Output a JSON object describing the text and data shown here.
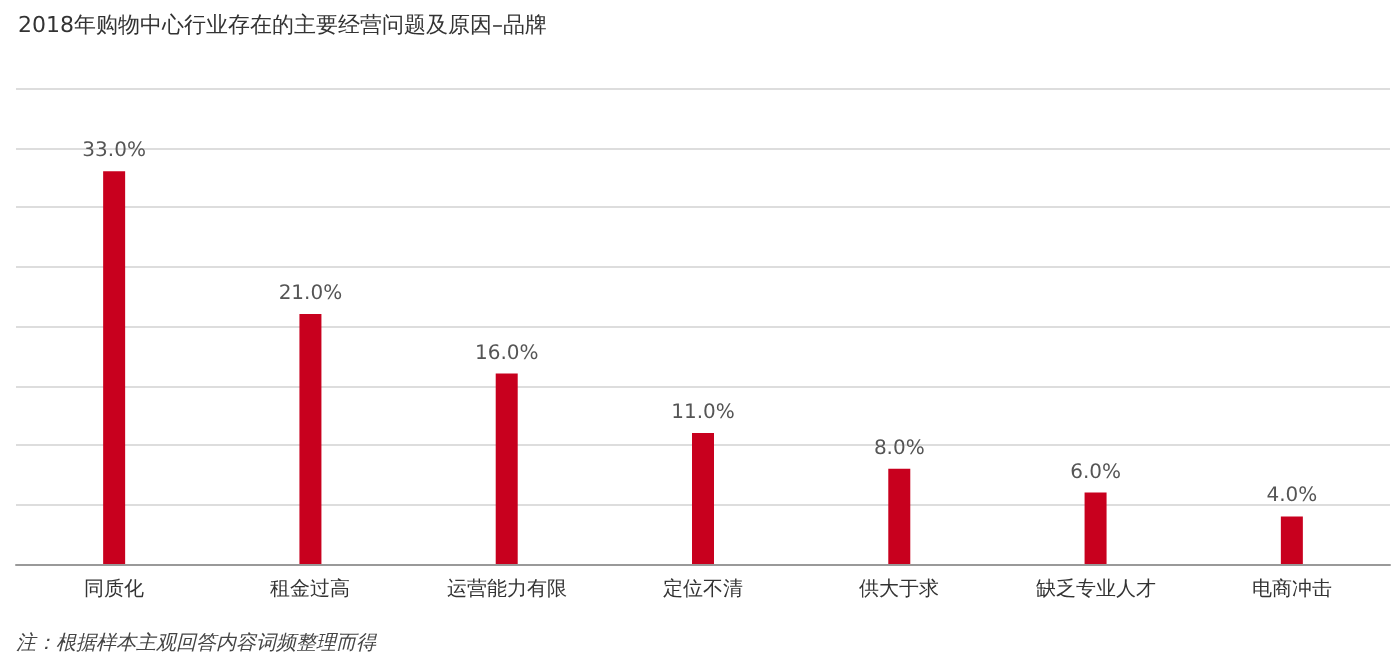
{
  "chart_data": {
    "type": "bar",
    "title": "2018年购物中心行业存在的主要经营问题及原因–品牌",
    "categories": [
      "同质化",
      "租金过高",
      "运营能力有限",
      "定位不清",
      "供大于求",
      "缺乏专业人才",
      "电商冲击"
    ],
    "values": [
      33,
      21,
      16,
      11,
      8,
      6,
      4
    ],
    "value_labels": [
      "33.0%",
      "21.0%",
      "16.0%",
      "11.0%",
      "8.0%",
      "6.0%",
      "4.0%"
    ],
    "color": "#c8001e",
    "ylim": [
      0,
      40
    ],
    "yticks": [
      {
        "value": 0,
        "label": null
      },
      {
        "value": 5,
        "label": null
      },
      {
        "value": 10,
        "label": null
      },
      {
        "value": 15,
        "label": null
      },
      {
        "value": 20,
        "label": null
      },
      {
        "value": 25,
        "label": null
      },
      {
        "value": 30,
        "label": null
      },
      {
        "value": 35,
        "label": null
      },
      {
        "value": 40,
        "label": null
      }
    ],
    "tick_labels": "x",
    "grid": "y",
    "annotations": [
      "注：根据样本主观回答内容词频整理而得"
    ]
  }
}
